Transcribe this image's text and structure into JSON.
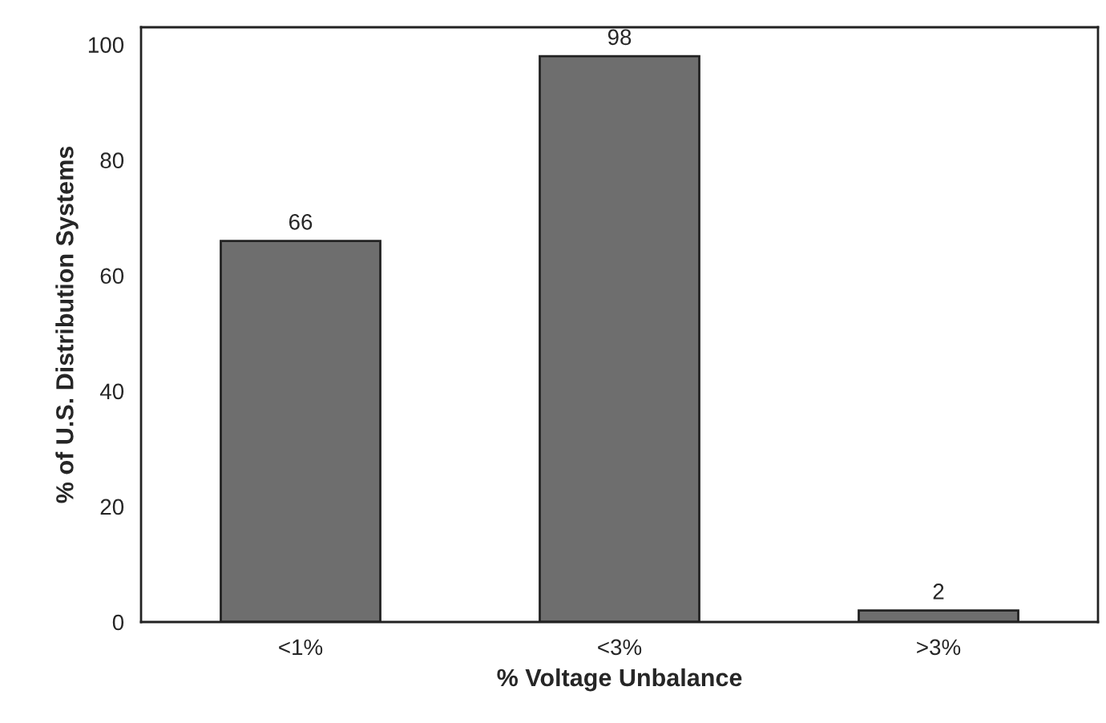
{
  "chart_data": {
    "type": "bar",
    "xlabel": "% Voltage Unbalance",
    "ylabel": "% of U.S. Distribution Systems",
    "categories": [
      "<1%",
      "<3%",
      ">3%"
    ],
    "values": [
      66,
      98,
      2
    ],
    "color": "#6e6e6e",
    "ylim": [
      0,
      103
    ],
    "yticks": [
      0,
      20,
      40,
      60,
      80,
      100
    ],
    "data_labels": true,
    "grid": false,
    "legend": false
  }
}
